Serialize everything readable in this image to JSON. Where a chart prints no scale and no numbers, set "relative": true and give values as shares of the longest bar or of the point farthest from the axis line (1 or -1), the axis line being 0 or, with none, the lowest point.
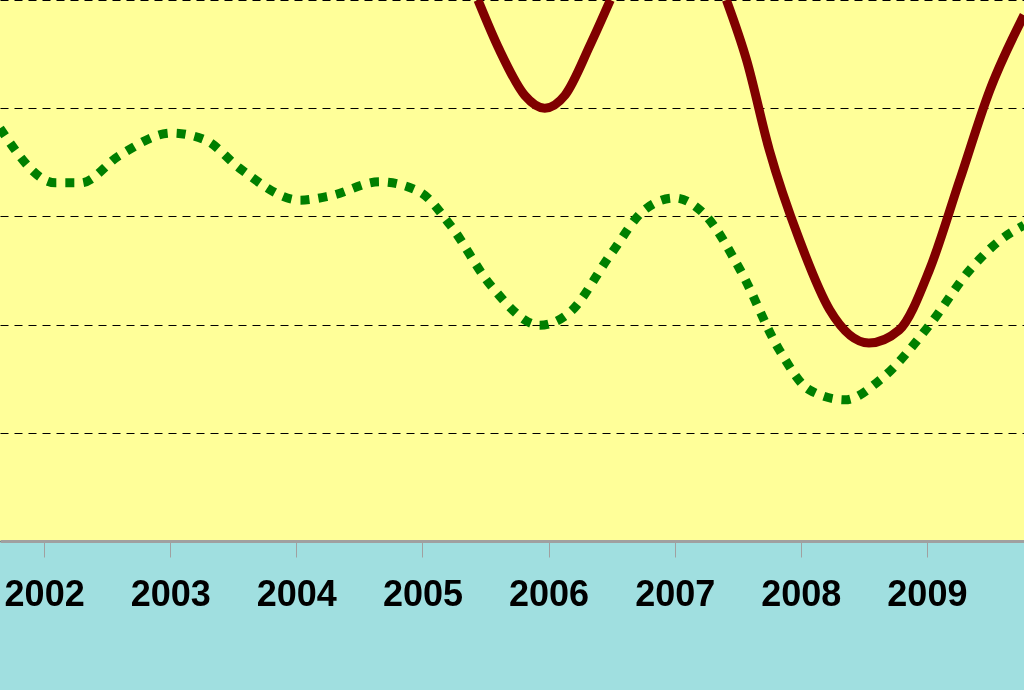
{
  "chart_data": {
    "type": "line",
    "relative": true,
    "xlim": [
      2001.65,
      2009.77
    ],
    "xticks": [
      2002,
      2003,
      2004,
      2005,
      2006,
      2007,
      2008,
      2009
    ],
    "grid": "y",
    "series": [
      {
        "color": "#007f00",
        "line_style": "dotted",
        "x": [
          2001.65,
          2002.09,
          2002.29,
          2002.6,
          2003.01,
          2003.28,
          2003.55,
          2004.03,
          2004.27,
          2004.66,
          2004.98,
          2005.22,
          2005.54,
          2005.93,
          2006.17,
          2006.49,
          2006.76,
          2007.0,
          2007.24,
          2007.52,
          2007.83,
          2008.07,
          2008.35,
          2008.63,
          2009.02,
          2009.34,
          2009.58,
          2009.77
        ],
        "values": [
          0.763,
          0.662,
          0.662,
          0.713,
          0.754,
          0.741,
          0.689,
          0.63,
          0.638,
          0.664,
          0.645,
          0.584,
          0.473,
          0.399,
          0.423,
          0.529,
          0.612,
          0.634,
          0.603,
          0.501,
          0.353,
          0.279,
          0.261,
          0.298,
          0.399,
          0.501,
          0.556,
          0.584
        ]
      },
      {
        "color": "#800000",
        "line_style": "solid",
        "x": [
          2005.44,
          2005.61,
          2005.81,
          2005.97,
          2006.13,
          2006.33,
          2006.49,
          2006.95,
          2007.41,
          2007.57,
          2007.75,
          2007.99,
          2008.23,
          2008.54,
          2008.78,
          2009.02,
          2009.26,
          2009.5,
          2009.77
        ],
        "values": [
          1.0,
          0.908,
          0.824,
          0.8,
          0.824,
          0.917,
          1.0,
          null,
          1.0,
          0.889,
          0.723,
          0.556,
          0.427,
          0.366,
          0.39,
          0.501,
          0.667,
          0.834,
          0.972
        ]
      }
    ]
  }
}
